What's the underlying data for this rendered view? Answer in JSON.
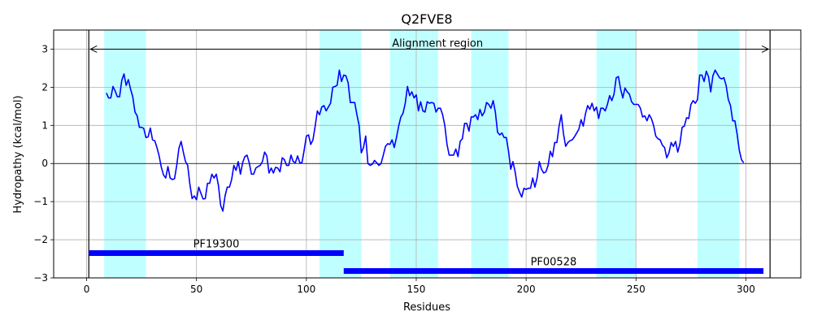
{
  "chart_data": {
    "type": "line",
    "title": "Q2FVE8",
    "xlabel": "Residues",
    "ylabel": "Hydropathy (kcal/mol)",
    "xlim": [
      -15,
      325
    ],
    "ylim": [
      -3,
      3.5
    ],
    "xticks": [
      0,
      50,
      100,
      150,
      200,
      250,
      300
    ],
    "yticks": [
      -3,
      -2,
      -1,
      0,
      1,
      2,
      3
    ],
    "xtick_labels": [
      "0",
      "50",
      "100",
      "150",
      "200",
      "250",
      "300"
    ],
    "ytick_labels": [
      "−3",
      "−2",
      "−1",
      "0",
      "1",
      "2",
      "3"
    ],
    "grid": true,
    "line_color": "#0000ff",
    "highlight_color": "#c0ffff",
    "domain_color": "#0000ff",
    "highlight_regions": [
      [
        8,
        27
      ],
      [
        106,
        125
      ],
      [
        138,
        160
      ],
      [
        175,
        192
      ],
      [
        232,
        250
      ],
      [
        278,
        297
      ]
    ],
    "alignment_region": {
      "label": "Alignment region",
      "start": 1,
      "end": 311
    },
    "domains": [
      {
        "name": "PF19300",
        "start": 1,
        "end": 117,
        "y": -2.35
      },
      {
        "name": "PF00528",
        "start": 117,
        "end": 308,
        "y": -2.82
      }
    ],
    "series": [
      {
        "x_start": 9,
        "values": [
          1.85,
          1.72,
          1.72,
          2.02,
          1.9,
          1.75,
          1.75,
          2.18,
          2.35,
          2.05,
          2.2,
          1.95,
          1.75,
          1.35,
          1.25,
          0.95,
          0.95,
          0.92,
          0.68,
          0.7,
          0.93,
          0.62,
          0.6,
          0.42,
          0.2,
          -0.1,
          -0.3,
          -0.38,
          -0.08,
          -0.38,
          -0.42,
          -0.4,
          -0.05,
          0.4,
          0.58,
          0.3,
          0.05,
          -0.05,
          -0.55,
          -0.92,
          -0.85,
          -0.95,
          -0.62,
          -0.78,
          -0.93,
          -0.92,
          -0.52,
          -0.52,
          -0.28,
          -0.38,
          -0.28,
          -0.58,
          -1.1,
          -1.25,
          -0.85,
          -0.62,
          -0.62,
          -0.42,
          -0.05,
          -0.18,
          0.05,
          -0.28,
          0.02,
          0.18,
          0.22,
          0.02,
          -0.28,
          -0.28,
          -0.12,
          -0.08,
          -0.05,
          0.05,
          0.3,
          0.2,
          -0.25,
          -0.12,
          -0.25,
          -0.1,
          -0.12,
          -0.22,
          0.15,
          0.1,
          -0.05,
          -0.05,
          0.22,
          0.05,
          0.02,
          0.2,
          0.02,
          0.02,
          0.35,
          0.72,
          0.75,
          0.5,
          0.62,
          0.98,
          1.38,
          1.28,
          1.48,
          1.52,
          1.38,
          1.48,
          1.58,
          2.0,
          2.02,
          2.05,
          2.45,
          2.15,
          2.32,
          2.3,
          2.12,
          1.6,
          1.6,
          1.6,
          1.28,
          1.0,
          0.28,
          0.42,
          0.72,
          0.0,
          -0.05,
          -0.02,
          0.08,
          0.02,
          -0.05,
          0.0,
          0.22,
          0.45,
          0.52,
          0.5,
          0.62,
          0.42,
          0.68,
          0.98,
          1.22,
          1.32,
          1.58,
          2.02,
          1.78,
          1.88,
          1.72,
          1.8,
          1.38,
          1.62,
          1.38,
          1.35,
          1.62,
          1.58,
          1.6,
          1.58,
          1.35,
          1.45,
          1.45,
          1.28,
          1.0,
          0.5,
          0.22,
          0.22,
          0.22,
          0.38,
          0.18,
          0.58,
          0.65,
          1.05,
          1.05,
          0.85,
          1.22,
          1.22,
          1.28,
          1.15,
          1.42,
          1.25,
          1.35,
          1.6,
          1.55,
          1.45,
          1.65,
          1.35,
          0.82,
          0.75,
          0.8,
          0.68,
          0.68,
          0.32,
          -0.15,
          0.05,
          -0.22,
          -0.6,
          -0.75,
          -0.88,
          -0.65,
          -0.68,
          -0.65,
          -0.65,
          -0.38,
          -0.62,
          -0.38,
          0.05,
          -0.15,
          -0.25,
          -0.22,
          -0.05,
          0.32,
          0.18,
          0.55,
          0.55,
          0.98,
          1.28,
          0.78,
          0.45,
          0.55,
          0.6,
          0.62,
          0.7,
          0.8,
          0.9,
          1.15,
          0.98,
          1.3,
          1.52,
          1.42,
          1.58,
          1.38,
          1.48,
          1.18,
          1.45,
          1.45,
          1.38,
          1.55,
          1.78,
          1.65,
          1.82,
          2.25,
          2.28,
          1.95,
          1.72,
          1.98,
          1.88,
          1.82,
          1.62,
          1.55,
          1.55,
          1.55,
          1.45,
          1.22,
          1.25,
          1.12,
          1.28,
          1.18,
          1.0,
          0.72,
          0.65,
          0.62,
          0.48,
          0.42,
          0.15,
          0.28,
          0.55,
          0.45,
          0.58,
          0.3,
          0.52,
          0.95,
          0.98,
          1.2,
          1.18,
          1.55,
          1.65,
          1.58,
          1.68,
          2.32,
          2.32,
          2.15,
          2.42,
          2.28,
          1.88,
          2.3,
          2.45,
          2.35,
          2.25,
          2.22,
          2.25,
          2.05,
          1.68,
          1.52,
          1.12,
          1.12,
          0.78,
          0.35,
          0.1,
          0.02
        ]
      }
    ]
  }
}
